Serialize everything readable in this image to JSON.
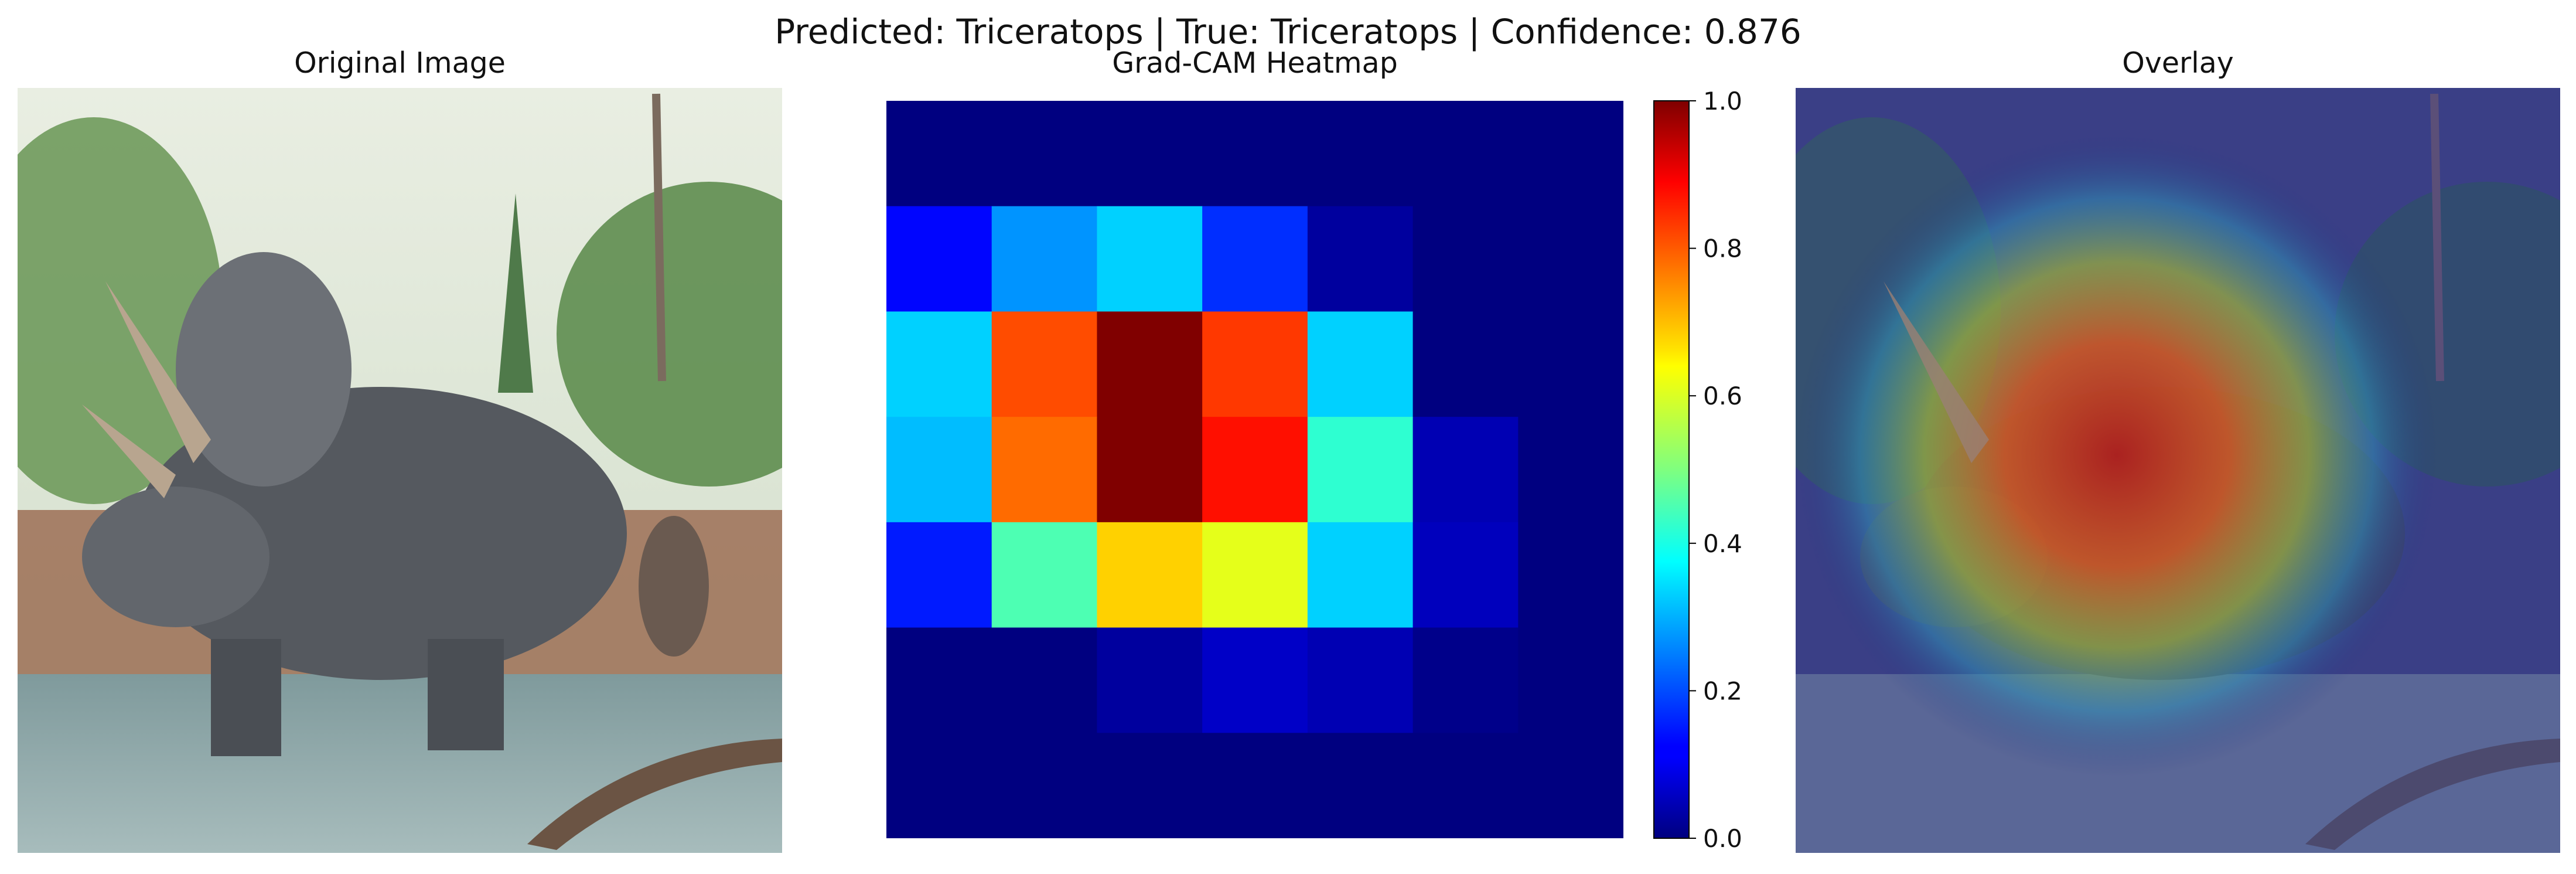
{
  "suptitle": "Predicted: Triceratops | True: Triceratops | Confidence: 0.876",
  "panels": {
    "original_title": "Original Image",
    "heatmap_title": "Grad-CAM Heatmap",
    "overlay_title": "Overlay"
  },
  "colors": {
    "sky": "#d9e6d6",
    "foliage": "#6f9a5c",
    "dino": "#55595f",
    "water": "#8aa4a6",
    "ground": "#9c6e55"
  },
  "chart_data": {
    "type": "heatmap",
    "title": "Grad-CAM Heatmap",
    "colormap": "jet",
    "rows": 7,
    "cols": 7,
    "z": [
      [
        0.0,
        0.0,
        0.0,
        0.0,
        0.0,
        0.0,
        0.0
      ],
      [
        0.13,
        0.27,
        0.33,
        0.17,
        0.03,
        0.0,
        0.0
      ],
      [
        0.33,
        0.8,
        1.0,
        0.82,
        0.33,
        0.0,
        0.0
      ],
      [
        0.31,
        0.77,
        1.0,
        0.86,
        0.42,
        0.05,
        0.0
      ],
      [
        0.15,
        0.45,
        0.67,
        0.6,
        0.33,
        0.06,
        0.0
      ],
      [
        0.0,
        0.0,
        0.03,
        0.07,
        0.05,
        0.01,
        0.0
      ],
      [
        0.0,
        0.0,
        0.0,
        0.0,
        0.0,
        0.0,
        0.0
      ]
    ],
    "colorbar": {
      "range": [
        0.0,
        1.0
      ],
      "ticks": [
        "0.0",
        "0.2",
        "0.4",
        "0.6",
        "0.8",
        "1.0"
      ]
    }
  }
}
